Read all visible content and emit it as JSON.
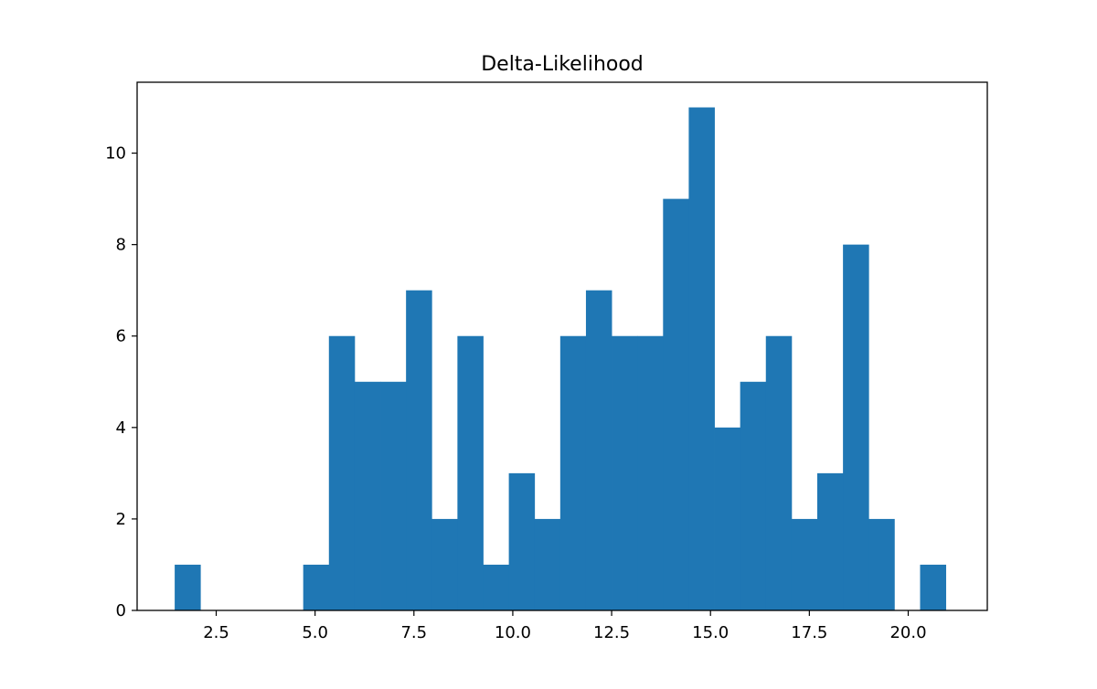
{
  "chart_data": {
    "type": "bar",
    "subtype": "histogram",
    "title": "Delta-Likelihood",
    "xlabel": "",
    "ylabel": "",
    "bar_color": "#1f77b4",
    "xlim": [
      0.5,
      22.0
    ],
    "ylim": [
      0,
      11.55
    ],
    "x_ticks": [
      2.5,
      5.0,
      7.5,
      10.0,
      12.5,
      15.0,
      17.5,
      20.0
    ],
    "x_tick_labels": [
      "2.5",
      "5.0",
      "7.5",
      "10.0",
      "12.5",
      "15.0",
      "17.5",
      "20.0"
    ],
    "y_ticks": [
      0,
      2,
      4,
      6,
      8,
      10
    ],
    "y_tick_labels": [
      "0",
      "2",
      "4",
      "6",
      "8",
      "10"
    ],
    "grid": false,
    "bin_edges": [
      1.45,
      2.1,
      2.75,
      3.4,
      4.05,
      4.7,
      5.35,
      6.0,
      6.65,
      7.3,
      7.95,
      8.6,
      9.25,
      9.9,
      10.55,
      11.2,
      11.85,
      12.5,
      13.15,
      13.8,
      14.45,
      15.1,
      15.75,
      16.4,
      17.05,
      17.7,
      18.35,
      19.0,
      19.65,
      20.3,
      20.95
    ],
    "counts": [
      1,
      0,
      0,
      0,
      0,
      1,
      6,
      5,
      5,
      7,
      2,
      6,
      1,
      3,
      2,
      6,
      7,
      6,
      6,
      9,
      11,
      4,
      5,
      6,
      2,
      3,
      8,
      2,
      0,
      1
    ]
  }
}
